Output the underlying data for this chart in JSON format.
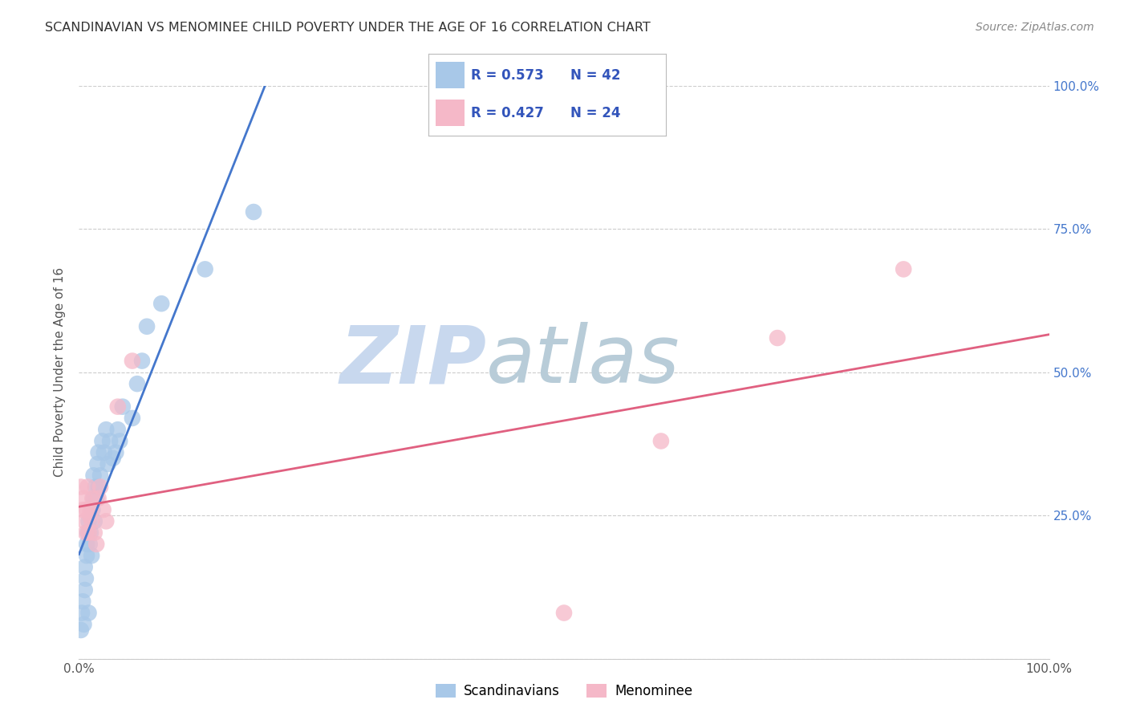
{
  "title": "SCANDINAVIAN VS MENOMINEE CHILD POVERTY UNDER THE AGE OF 16 CORRELATION CHART",
  "source": "Source: ZipAtlas.com",
  "ylabel": "Child Poverty Under the Age of 16",
  "xlim": [
    0.0,
    1.0
  ],
  "ylim": [
    0.0,
    1.0
  ],
  "xticks": [
    0.0,
    0.25,
    0.5,
    0.75,
    1.0
  ],
  "xticklabels": [
    "0.0%",
    "",
    "",
    "",
    "100.0%"
  ],
  "yticks_right": [
    0.0,
    0.25,
    0.5,
    0.75,
    1.0
  ],
  "yticklabels_right": [
    "",
    "25.0%",
    "50.0%",
    "75.0%",
    "100.0%"
  ],
  "scandinavian_r": "0.573",
  "scandinavian_n": "42",
  "menominee_r": "0.427",
  "menominee_n": "24",
  "scandinavian_color": "#a8c8e8",
  "menominee_color": "#f5b8c8",
  "scandinavian_line_color": "#4477cc",
  "menominee_line_color": "#e06080",
  "legend_text_color": "#3355bb",
  "watermark_zip_color": "#c8d8ee",
  "watermark_atlas_color": "#b8ccd8",
  "scandinavian_x": [
    0.002,
    0.003,
    0.004,
    0.005,
    0.006,
    0.006,
    0.007,
    0.008,
    0.008,
    0.009,
    0.01,
    0.01,
    0.011,
    0.012,
    0.013,
    0.014,
    0.015,
    0.015,
    0.016,
    0.017,
    0.018,
    0.019,
    0.02,
    0.02,
    0.022,
    0.024,
    0.026,
    0.028,
    0.03,
    0.032,
    0.035,
    0.038,
    0.04,
    0.042,
    0.045,
    0.055,
    0.06,
    0.065,
    0.07,
    0.085,
    0.13,
    0.18
  ],
  "scandinavian_y": [
    0.05,
    0.08,
    0.1,
    0.06,
    0.12,
    0.16,
    0.14,
    0.18,
    0.2,
    0.22,
    0.08,
    0.24,
    0.2,
    0.22,
    0.18,
    0.26,
    0.28,
    0.32,
    0.24,
    0.3,
    0.28,
    0.34,
    0.3,
    0.36,
    0.32,
    0.38,
    0.36,
    0.4,
    0.34,
    0.38,
    0.35,
    0.36,
    0.4,
    0.38,
    0.44,
    0.42,
    0.48,
    0.52,
    0.58,
    0.62,
    0.68,
    0.78
  ],
  "menominee_x": [
    0.002,
    0.004,
    0.005,
    0.006,
    0.007,
    0.008,
    0.009,
    0.01,
    0.011,
    0.012,
    0.013,
    0.014,
    0.016,
    0.018,
    0.02,
    0.022,
    0.025,
    0.028,
    0.04,
    0.055,
    0.5,
    0.6,
    0.72,
    0.85
  ],
  "menominee_y": [
    0.3,
    0.26,
    0.28,
    0.24,
    0.22,
    0.26,
    0.3,
    0.22,
    0.25,
    0.26,
    0.24,
    0.28,
    0.22,
    0.2,
    0.28,
    0.3,
    0.26,
    0.24,
    0.44,
    0.52,
    0.08,
    0.38,
    0.56,
    0.68
  ]
}
